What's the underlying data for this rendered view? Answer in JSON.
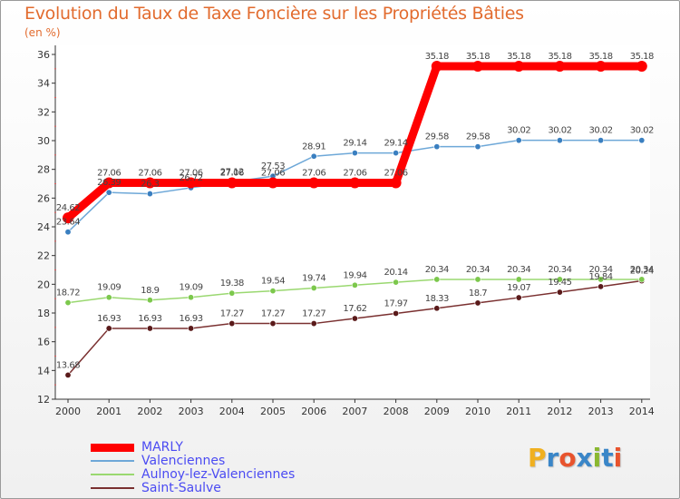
{
  "header": {
    "title": "Evolution du Taux de Taxe Foncière sur les Propriétés Bâties",
    "subtitle": "(en %)"
  },
  "logo": {
    "text": "Proxiti",
    "letters": [
      "P",
      "r",
      "o",
      "x",
      "i",
      "t",
      "i"
    ],
    "colors": [
      "#f0b020",
      "#3a86c8",
      "#e8542e",
      "#3a86c8",
      "#8ab830",
      "#3a86c8",
      "#e8542e"
    ]
  },
  "chart_data": {
    "type": "line",
    "x": [
      "2000",
      "2001",
      "2002",
      "2003",
      "2004",
      "2005",
      "2006",
      "2007",
      "2008",
      "2009",
      "2010",
      "2011",
      "2012",
      "2013",
      "2014"
    ],
    "ylim": [
      12,
      36
    ],
    "yticks": [
      "12",
      "14",
      "16",
      "18",
      "20",
      "22",
      "24",
      "26",
      "28",
      "30",
      "32",
      "34",
      "36"
    ],
    "grid": false,
    "legend_position": "bottom-left",
    "series": [
      {
        "name": "MARLY",
        "color": "#ff0000",
        "thick": true,
        "values": [
          24.62,
          27.06,
          27.06,
          27.06,
          27.06,
          27.06,
          27.06,
          27.06,
          27.06,
          35.18,
          35.18,
          35.18,
          35.18,
          35.18,
          35.18
        ],
        "labels": [
          "24.62",
          "27.06",
          "27.06",
          "27.06",
          "27.06",
          "27.06",
          "27.06",
          "27.06",
          "27.06",
          "35.18",
          "35.18",
          "35.18",
          "35.18",
          "35.18",
          "35.18"
        ]
      },
      {
        "name": "Valenciennes",
        "color": "#6ea8d8",
        "marker": "#3a7fc0",
        "values": [
          23.64,
          26.39,
          26.3,
          26.72,
          27.12,
          27.53,
          28.91,
          29.14,
          29.14,
          29.58,
          29.58,
          30.02,
          30.02,
          30.02,
          30.02
        ],
        "labels": [
          "23.64",
          "26.39",
          "26.3",
          "26.72",
          "27.12",
          "27.53",
          "28.91",
          "29.14",
          "29.14",
          "29.58",
          "29.58",
          "30.02",
          "30.02",
          "30.02",
          "30.02"
        ]
      },
      {
        "name": "Aulnoy-lez-Valenciennes",
        "color": "#9ad870",
        "marker": "#7cc84c",
        "values": [
          18.72,
          19.09,
          18.9,
          19.09,
          19.38,
          19.54,
          19.74,
          19.94,
          20.14,
          20.34,
          20.34,
          20.34,
          20.34,
          20.34,
          20.34
        ],
        "labels": [
          "18.72",
          "19.09",
          "18.9",
          "19.09",
          "19.38",
          "19.54",
          "19.74",
          "19.94",
          "20.14",
          "20.34",
          "20.34",
          "20.34",
          "20.34",
          "20.34",
          "20.34"
        ]
      },
      {
        "name": "Saint-Saulve",
        "color": "#7a3030",
        "marker": "#5a1a1a",
        "values": [
          13.68,
          16.93,
          16.93,
          16.93,
          17.27,
          17.27,
          17.27,
          17.62,
          17.97,
          18.33,
          18.7,
          19.07,
          19.45,
          19.84,
          20.24
        ],
        "labels": [
          "13.68",
          "16.93",
          "16.93",
          "16.93",
          "17.27",
          "17.27",
          "17.27",
          "17.62",
          "17.97",
          "18.33",
          "18.7",
          "19.07",
          "19.45",
          "19.84",
          "20.24"
        ]
      }
    ]
  }
}
